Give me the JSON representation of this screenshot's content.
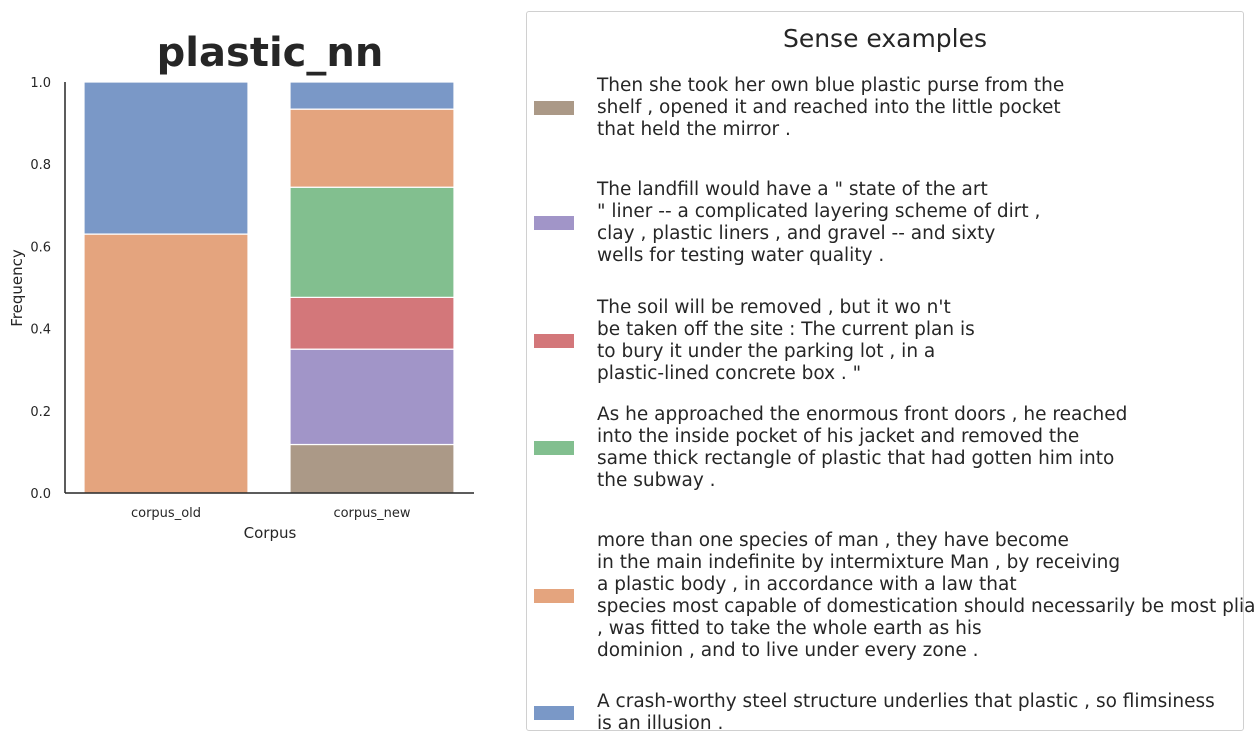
{
  "chart_data": {
    "type": "bar",
    "stacked": true,
    "title": "plastic_nn",
    "xlabel": "Corpus",
    "ylabel": "Frequency",
    "ylim": [
      0,
      1.0
    ],
    "yticks": [
      "0.0",
      "0.2",
      "0.4",
      "0.6",
      "0.8",
      "1.0"
    ],
    "categories": [
      "corpus_old",
      "corpus_new"
    ],
    "series": [
      {
        "color": "#ab9987",
        "values": [
          0.0,
          0.118
        ]
      },
      {
        "color": "#a195c8",
        "values": [
          0.0,
          0.232
        ]
      },
      {
        "color": "#d3777a",
        "values": [
          0.0,
          0.126
        ]
      },
      {
        "color": "#82bf8f",
        "values": [
          0.0,
          0.268
        ]
      },
      {
        "color": "#e4a47e",
        "values": [
          0.63,
          0.19
        ]
      },
      {
        "color": "#7a98c7",
        "values": [
          0.37,
          0.066
        ]
      }
    ],
    "legend": {
      "title": "Sense examples",
      "placement": "right",
      "entries": [
        {
          "color": "#ab9987",
          "text": "Then she took her own blue plastic purse from the\nshelf , opened it and reached into the little pocket\nthat held the mirror ."
        },
        {
          "color": "#a195c8",
          "text": "The landfill would have a \" state of the art\n\" liner -- a complicated layering scheme of dirt ,\nclay , plastic liners , and gravel -- and sixty\nwells for testing water quality ."
        },
        {
          "color": "#d3777a",
          "text": "The soil will be removed , but it wo n't\nbe taken off the site : The current plan is\nto bury it under the parking lot , in a\nplastic-lined concrete box . \""
        },
        {
          "color": "#82bf8f",
          "text": "As he approached the enormous front doors , he reached\ninto the inside pocket of his jacket and removed the\nsame thick rectangle of plastic that had gotten him into\nthe subway ."
        },
        {
          "color": "#e4a47e",
          "text": "more than one species of man , they have become\nin the main indefinite by intermixture Man , by receiving\na plastic body , in accordance with a law that\nspecies most capable of domestication should necessarily be most pliant\n, was fitted to take the whole earth as his\ndominion , and to live under every zone ."
        },
        {
          "color": "#7a98c7",
          "text": "A crash-worthy steel structure underlies that plastic , so flimsiness\nis an illusion ."
        }
      ]
    }
  }
}
